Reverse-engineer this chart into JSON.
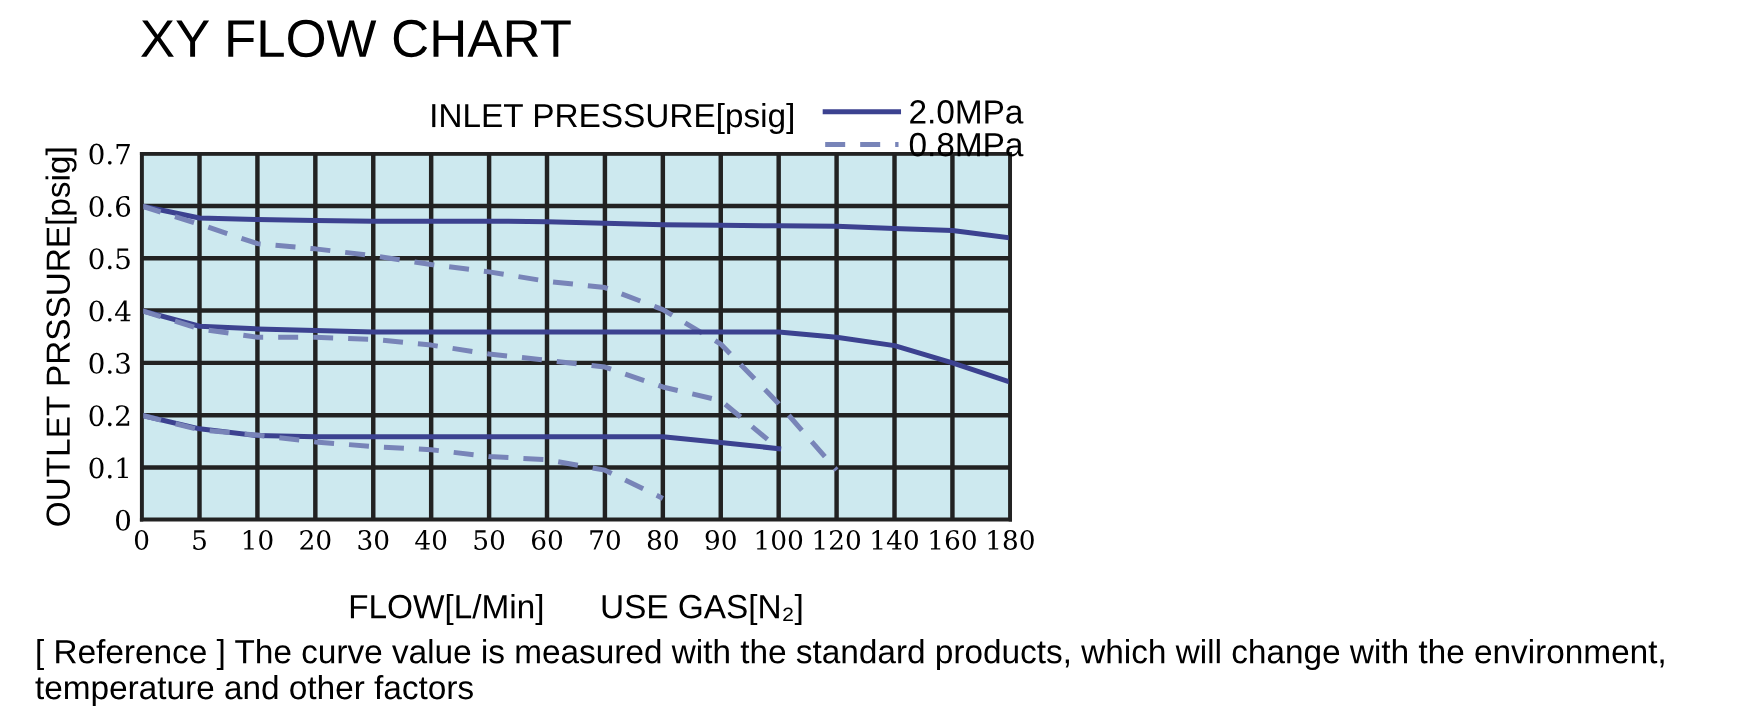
{
  "chart_data": {
    "type": "line",
    "title": "XY FLOW CHART",
    "xlabel": "FLOW[L/Min]      USE GAS[N₂]",
    "ylabel": "OUTLET PRSSURE[psig]",
    "legend_title": "INLET PRESSURE[psig]",
    "annotations": [
      "[ Reference ] The curve value is measured with the standard products, which will change with the environment, temperature and other factors"
    ],
    "categories": [
      "0",
      "5",
      "10",
      "20",
      "30",
      "40",
      "50",
      "60",
      "70",
      "80",
      "90",
      "100",
      "120",
      "140",
      "160",
      "180"
    ],
    "series": [
      {
        "name": "2.0MPa",
        "color": "#3c4290",
        "line_style": "solid",
        "values": [
          0.6,
          0.577,
          0.574,
          0.572,
          0.571,
          0.571,
          0.571,
          0.57,
          0.567,
          0.564,
          0.563,
          0.562,
          0.561,
          0.557,
          0.553,
          0.539
        ]
      },
      {
        "name": "0.8MPa",
        "color": "#7884b8",
        "line_style": "dashed",
        "values": [
          0.6,
          0.565,
          0.528,
          0.518,
          0.505,
          0.488,
          0.474,
          0.456,
          0.444,
          0.402,
          0.336,
          0.222,
          0.095,
          null,
          null,
          null
        ]
      },
      {
        "color": "#3c4290",
        "line_style": "solid",
        "values": [
          0.4,
          0.37,
          0.365,
          0.362,
          0.359,
          0.359,
          0.359,
          0.359,
          0.359,
          0.359,
          0.359,
          0.359,
          0.349,
          0.333,
          0.3,
          0.263
        ]
      },
      {
        "color": "#7884b8",
        "line_style": "dashed",
        "values": [
          0.4,
          0.365,
          0.349,
          0.349,
          0.345,
          0.334,
          0.317,
          0.305,
          0.292,
          0.254,
          0.228,
          0.136,
          null,
          null,
          null,
          null
        ]
      },
      {
        "color": "#3c4290",
        "line_style": "solid",
        "values": [
          0.2,
          0.174,
          0.161,
          0.159,
          0.159,
          0.159,
          0.159,
          0.159,
          0.159,
          0.159,
          0.148,
          0.136,
          null,
          null,
          null,
          null
        ]
      },
      {
        "color": "#7884b8",
        "line_style": "dashed",
        "values": [
          0.2,
          0.172,
          0.162,
          0.149,
          0.14,
          0.134,
          0.121,
          0.115,
          0.095,
          0.041,
          null,
          null,
          null,
          null,
          null,
          null
        ]
      }
    ],
    "ylim": [
      0,
      0.7
    ],
    "yticks": [
      0,
      0.1,
      0.2,
      0.3,
      0.4,
      0.5,
      0.6,
      0.7
    ],
    "grid": true,
    "legend": "top right",
    "marker": "none"
  }
}
